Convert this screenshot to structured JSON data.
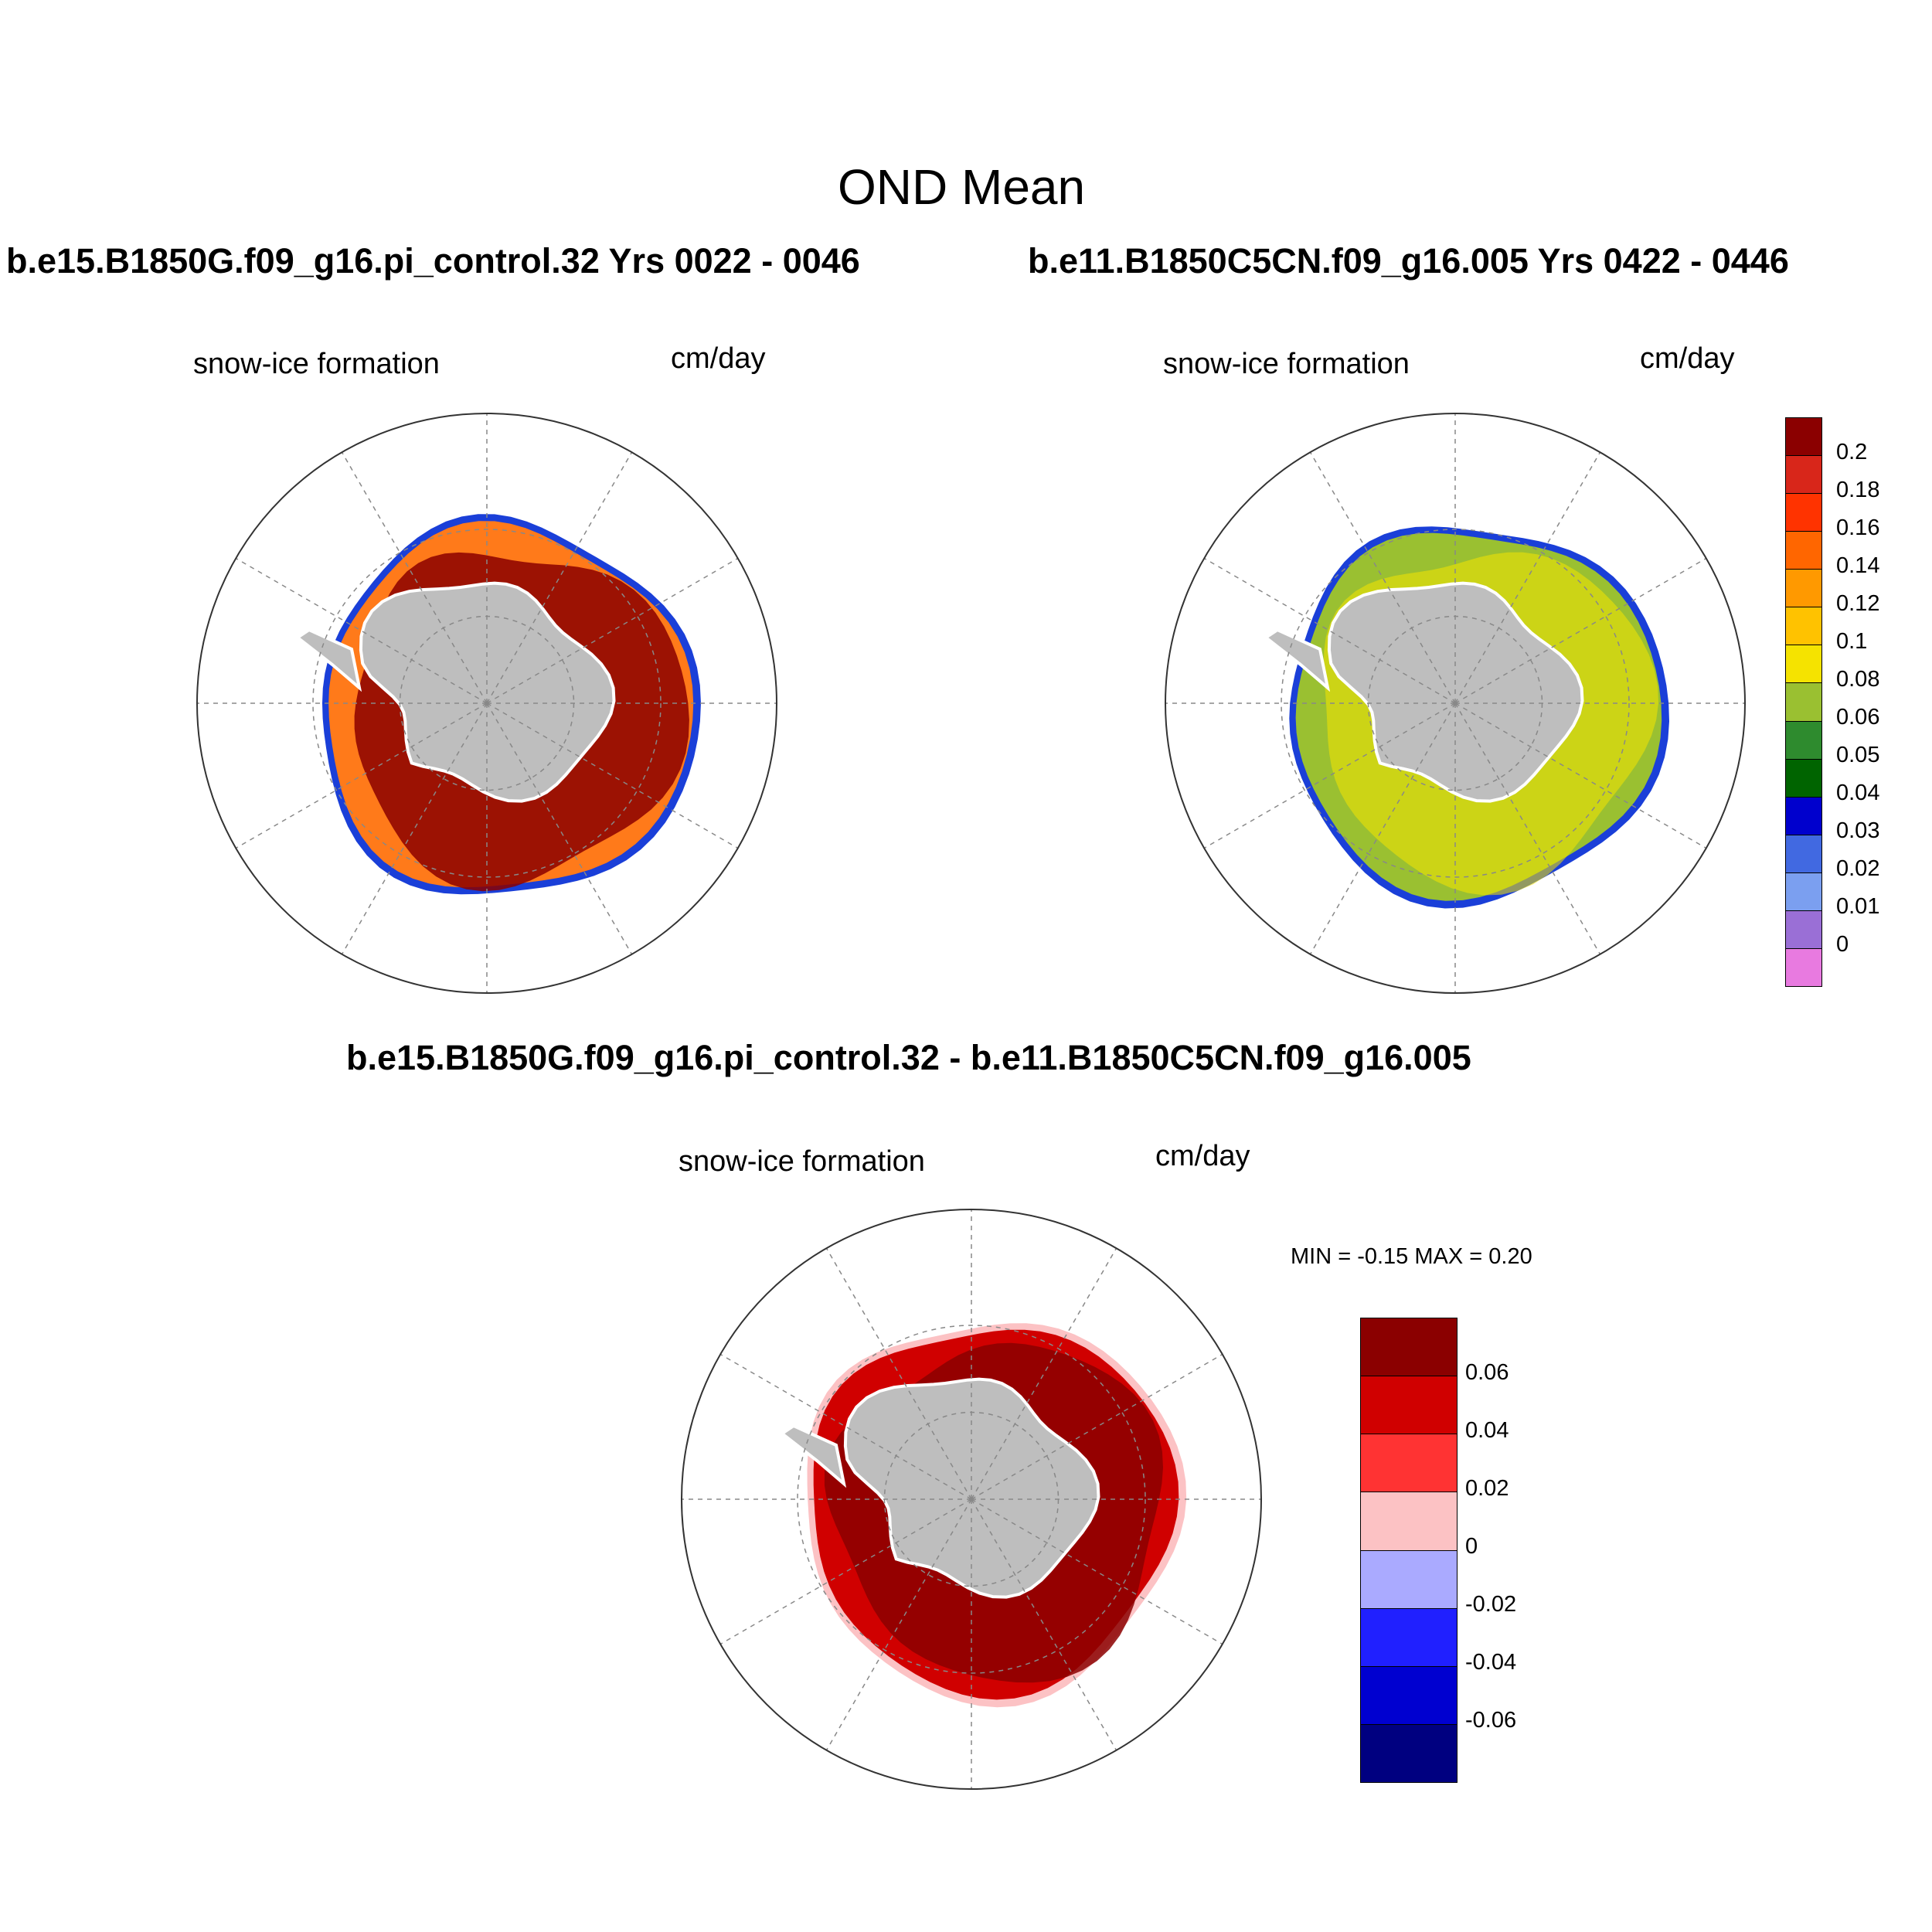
{
  "title": "OND Mean",
  "panels": [
    {
      "case_title": "b.e15.B1850G.f09_g16.pi_control.32  Yrs 0022 - 0046",
      "variable": "snow-ice formation",
      "units": "cm/day",
      "dominant_color": "#ff7a1a",
      "highlight_color": "#8b0000"
    },
    {
      "case_title": "b.e11.B1850C5CN.f09_g16.005  Yrs 0422 - 0446",
      "variable": "snow-ice formation",
      "units": "cm/day",
      "dominant_color": "#9ac031",
      "highlight_color": "#f5e300"
    }
  ],
  "diff_panel": {
    "case_title": "b.e15.B1850G.f09_g16.pi_control.32 - b.e11.B1850C5CN.f09_g16.005",
    "variable": "snow-ice formation",
    "units": "cm/day",
    "min_max": "MIN =  -0.15 MAX =   0.20",
    "dominant_color": "#8b0000"
  },
  "colorbar_top": {
    "colors": [
      "#8b0000",
      "#d8261a",
      "#ff3300",
      "#ff6600",
      "#ff9900",
      "#ffc200",
      "#f5e300",
      "#9ac031",
      "#2e8b2e",
      "#006400",
      "#0000cd",
      "#4169e1",
      "#7b9ff0",
      "#9a6fd6",
      "#e87ae0"
    ],
    "labels": [
      "0.2",
      "0.18",
      "0.16",
      "0.14",
      "0.12",
      "0.1",
      "0.08",
      "0.06",
      "0.05",
      "0.04",
      "0.03",
      "0.02",
      "0.01",
      "0"
    ]
  },
  "colorbar_diff": {
    "colors": [
      "#8b0000",
      "#d00000",
      "#ff3333",
      "#fcc2c4",
      "#aaaaff",
      "#2020ff",
      "#0000d0",
      "#000080"
    ],
    "labels": [
      "0.06",
      "0.04",
      "0.02",
      "0",
      "-0.02",
      "-0.04",
      "-0.06"
    ]
  },
  "map_colors": {
    "land": "#bebebe",
    "grid": "#888888"
  }
}
